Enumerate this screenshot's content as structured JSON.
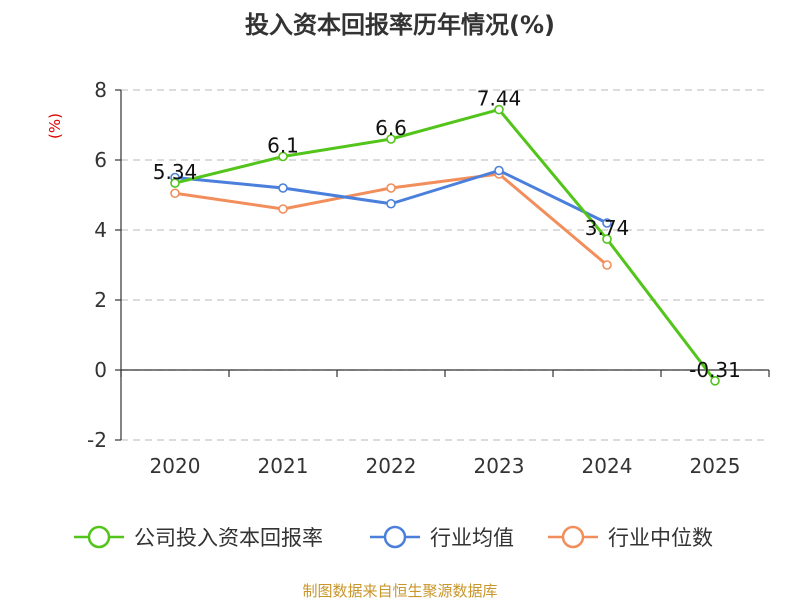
{
  "chart_data": {
    "type": "line",
    "title": "投入资本回报率历年情况(%)",
    "unit_label": "(%)",
    "categories": [
      "2020",
      "2021",
      "2022",
      "2023",
      "2024",
      "2025"
    ],
    "ylim": [
      -2,
      8
    ],
    "yticks": [
      -2,
      0,
      2,
      4,
      6,
      8
    ],
    "grid": true,
    "series": [
      {
        "name": "公司投入资本回报率",
        "color": "#52c41a",
        "values": [
          5.34,
          6.1,
          6.6,
          7.44,
          3.74,
          -0.31
        ],
        "labels": [
          "5.34",
          "6.1",
          "6.6",
          "7.44",
          "3.74",
          "-0.31"
        ]
      },
      {
        "name": "行业均值",
        "color": "#4a7fdc",
        "values": [
          5.5,
          5.2,
          4.75,
          5.7,
          4.2,
          null
        ]
      },
      {
        "name": "行业中位数",
        "color": "#f28e5b",
        "values": [
          5.05,
          4.6,
          5.2,
          5.6,
          3.0,
          null
        ]
      }
    ]
  },
  "source": "制图数据来自恒生聚源数据库"
}
